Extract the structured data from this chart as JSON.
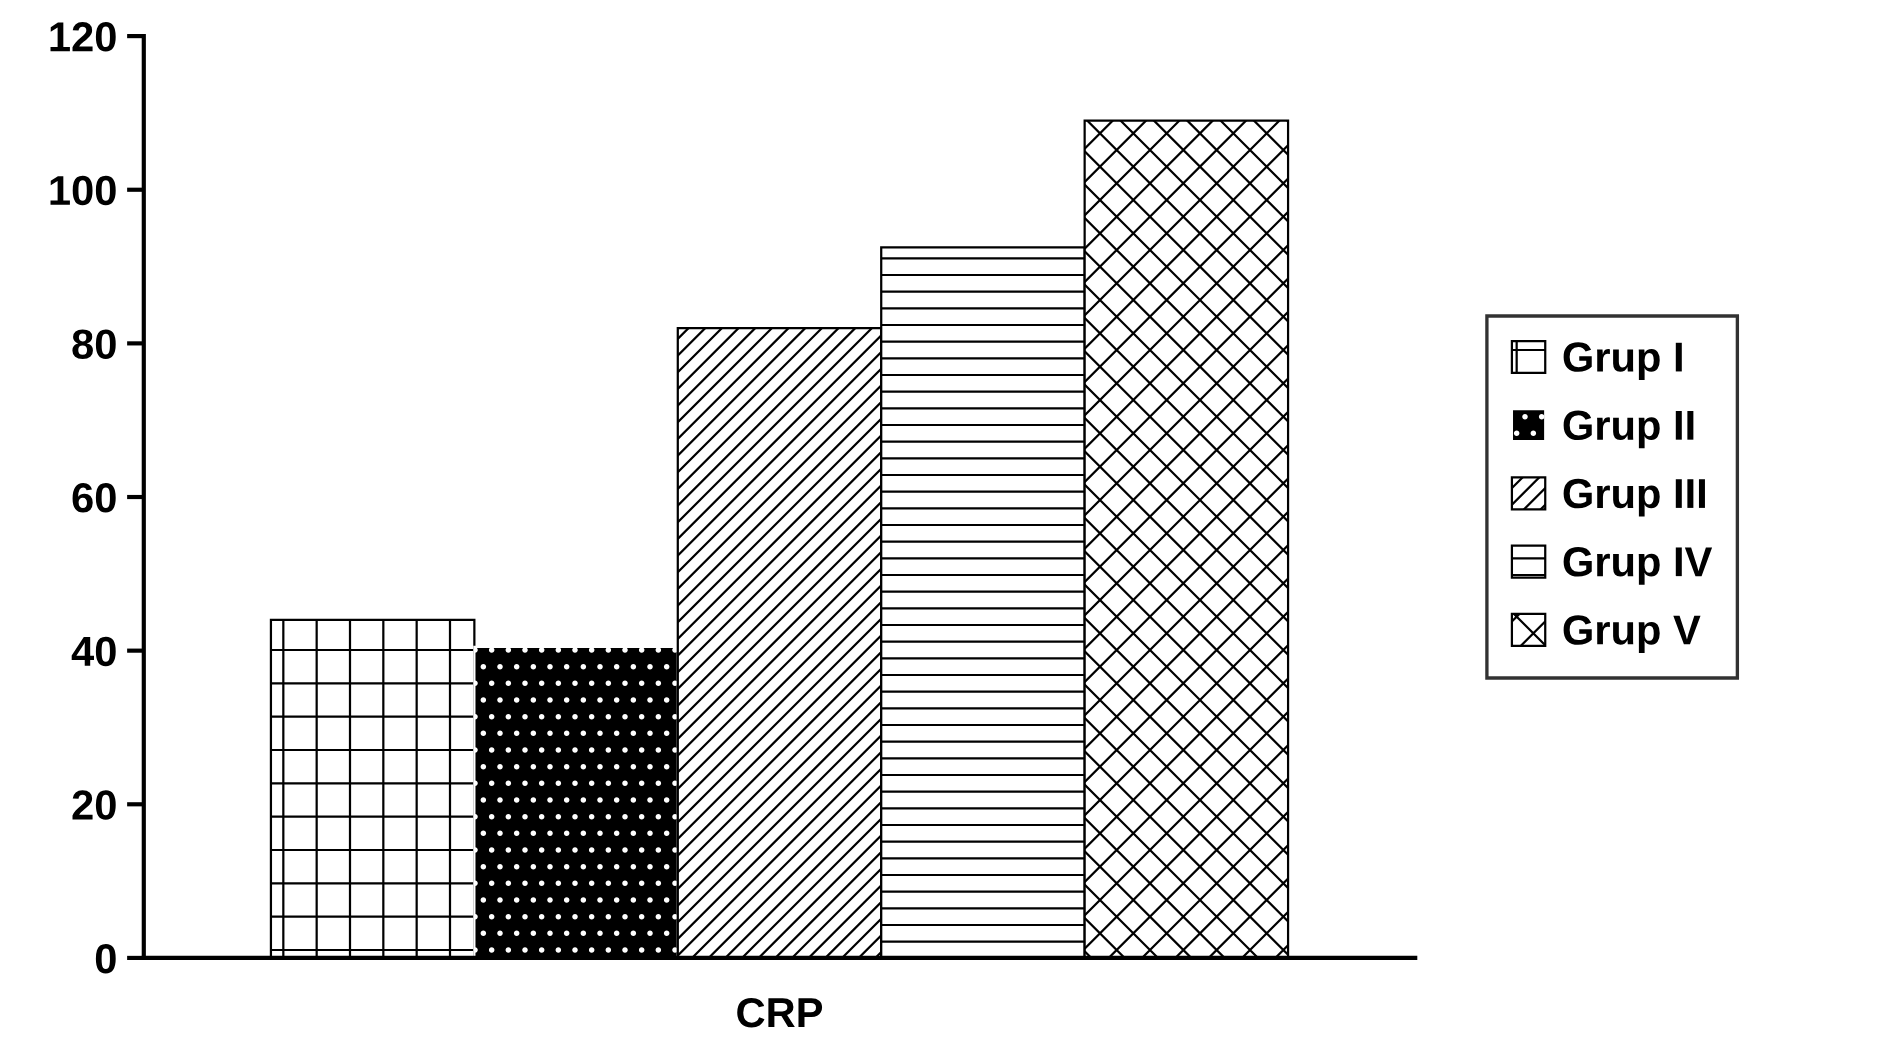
{
  "chart_data": {
    "type": "bar",
    "categories": [
      "CRP"
    ],
    "series": [
      {
        "name": "Grup I",
        "color": "#000000",
        "values": [
          44
        ]
      },
      {
        "name": "Grup II",
        "color": "#ffffff",
        "values": [
          40.5
        ]
      },
      {
        "name": "Grup III",
        "color": "#000000",
        "values": [
          82
        ]
      },
      {
        "name": "Grup IV",
        "color": "#000000",
        "values": [
          92.5
        ]
      },
      {
        "name": "Grup V",
        "color": "#000000",
        "values": [
          109
        ]
      }
    ],
    "ylim": [
      0,
      120
    ],
    "yticks": [
      0,
      20,
      40,
      60,
      80,
      100,
      120
    ],
    "legend": "right",
    "grid": false
  }
}
